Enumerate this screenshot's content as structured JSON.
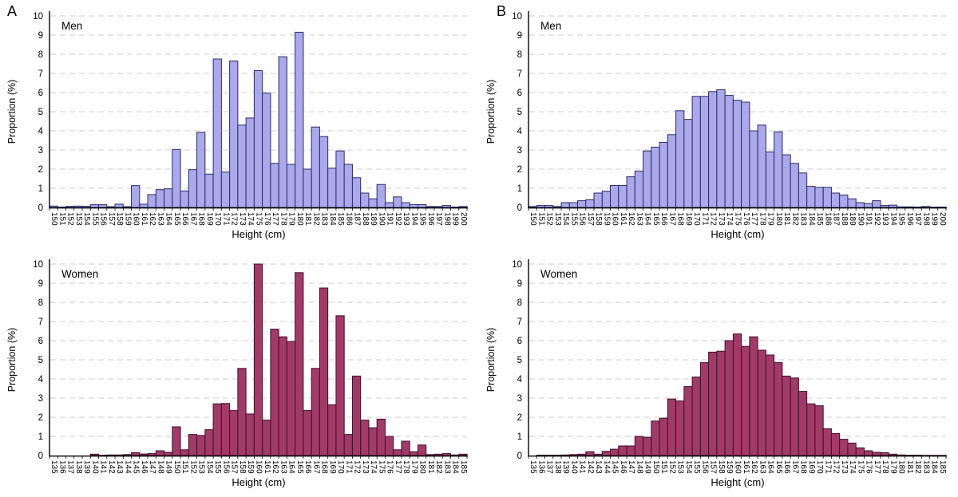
{
  "axes": {
    "ylabel": "Proportion (%)",
    "xlabel": "Height (cm)",
    "ylim": [
      0,
      10
    ],
    "yticks": [
      0,
      1,
      2,
      3,
      4,
      5,
      6,
      7,
      8,
      9,
      10
    ],
    "grid": "dashed horizontal"
  },
  "colors": {
    "men_fill": "#a9a9ec",
    "men_stroke": "#2b2b66",
    "women_fill": "#a23a68",
    "women_stroke": "#3c102e",
    "gridline": "#cccccc",
    "axis": "#000000",
    "background": "#ffffff"
  },
  "chart_data": [
    {
      "type": "bar",
      "panel": "A",
      "title": "Men",
      "xlabel": "Height (cm)",
      "ylabel": "Proportion (%)",
      "ylim": [
        0,
        10
      ],
      "legend": "none",
      "fill": "#a9a9ec",
      "stroke": "#2b2b66",
      "categories": [
        150,
        151,
        152,
        153,
        154,
        155,
        156,
        157,
        158,
        159,
        160,
        161,
        162,
        163,
        164,
        165,
        166,
        167,
        168,
        169,
        170,
        171,
        172,
        173,
        174,
        175,
        176,
        177,
        178,
        179,
        180,
        181,
        182,
        183,
        184,
        185,
        186,
        187,
        188,
        189,
        190,
        191,
        192,
        193,
        194,
        195,
        196,
        197,
        198,
        199,
        200
      ],
      "values": [
        0.07,
        0.02,
        0.06,
        0.07,
        0.06,
        0.14,
        0.14,
        0.04,
        0.17,
        0.04,
        1.14,
        0.17,
        0.67,
        0.93,
        0.97,
        3.03,
        0.86,
        1.97,
        3.92,
        1.74,
        7.75,
        1.85,
        7.65,
        4.3,
        4.67,
        7.15,
        5.97,
        2.3,
        7.87,
        2.25,
        9.15,
        2.0,
        4.2,
        3.7,
        2.05,
        2.95,
        2.25,
        1.55,
        0.75,
        0.45,
        1.2,
        0.25,
        0.55,
        0.25,
        0.15,
        0.15,
        0.05,
        0.05,
        0.1,
        0.02,
        0.05
      ]
    },
    {
      "type": "bar",
      "panel": "B",
      "title": "Men",
      "xlabel": "Height (cm)",
      "ylabel": "Proportion (%)",
      "ylim": [
        0,
        10
      ],
      "legend": "none",
      "fill": "#a9a9ec",
      "stroke": "#2b2b66",
      "categories": [
        150,
        151,
        152,
        153,
        154,
        155,
        156,
        157,
        158,
        159,
        160,
        161,
        162,
        163,
        164,
        165,
        166,
        167,
        168,
        169,
        170,
        171,
        172,
        173,
        174,
        175,
        176,
        177,
        178,
        179,
        180,
        181,
        182,
        183,
        184,
        185,
        186,
        187,
        188,
        189,
        190,
        191,
        192,
        193,
        194,
        195,
        196,
        197,
        198,
        199,
        200
      ],
      "values": [
        0.05,
        0.1,
        0.1,
        0.05,
        0.25,
        0.25,
        0.35,
        0.4,
        0.75,
        0.85,
        1.15,
        1.15,
        1.6,
        1.9,
        2.95,
        3.15,
        3.4,
        3.8,
        5.05,
        4.6,
        5.8,
        5.8,
        6.05,
        6.15,
        5.85,
        5.6,
        5.5,
        4.0,
        4.3,
        2.9,
        3.95,
        2.75,
        2.3,
        1.8,
        1.1,
        1.05,
        1.05,
        0.75,
        0.65,
        0.45,
        0.25,
        0.2,
        0.35,
        0.1,
        0.12,
        0.03,
        0.03,
        0.02,
        0.05,
        0.02,
        0.02
      ]
    },
    {
      "type": "bar",
      "panel": "A",
      "title": "Women",
      "xlabel": "Height (cm)",
      "ylabel": "Proportion (%)",
      "ylim": [
        0,
        10
      ],
      "legend": "none",
      "fill": "#a23a68",
      "stroke": "#3c102e",
      "categories": [
        135,
        136,
        137,
        138,
        139,
        140,
        141,
        142,
        143,
        144,
        145,
        146,
        147,
        148,
        149,
        150,
        151,
        152,
        153,
        154,
        155,
        156,
        157,
        158,
        159,
        160,
        161,
        162,
        163,
        164,
        165,
        166,
        167,
        168,
        169,
        170,
        171,
        172,
        173,
        174,
        175,
        176,
        177,
        178,
        179,
        180,
        181,
        182,
        183,
        184,
        185
      ],
      "values": [
        0,
        0,
        0,
        0,
        0,
        0.07,
        0.02,
        0.03,
        0.03,
        0.05,
        0.15,
        0.08,
        0.1,
        0.25,
        0.17,
        1.5,
        0.3,
        1.1,
        1.05,
        1.35,
        2.7,
        2.72,
        2.35,
        4.55,
        2.17,
        10.0,
        1.85,
        6.6,
        6.2,
        5.95,
        9.55,
        2.35,
        4.55,
        8.75,
        2.65,
        7.3,
        1.1,
        4.15,
        1.85,
        1.45,
        1.9,
        1.0,
        0.3,
        0.75,
        0.2,
        0.55,
        0.05,
        0.07,
        0.1,
        0.03,
        0.07
      ]
    },
    {
      "type": "bar",
      "panel": "B",
      "title": "Women",
      "xlabel": "Height (cm)",
      "ylabel": "Proportion (%)",
      "ylim": [
        0,
        10
      ],
      "legend": "none",
      "fill": "#a23a68",
      "stroke": "#3c102e",
      "categories": [
        135,
        136,
        137,
        138,
        139,
        140,
        141,
        142,
        143,
        144,
        145,
        146,
        147,
        148,
        149,
        150,
        151,
        152,
        153,
        154,
        155,
        156,
        157,
        158,
        159,
        160,
        161,
        162,
        163,
        164,
        165,
        166,
        167,
        168,
        169,
        170,
        171,
        172,
        173,
        174,
        175,
        176,
        177,
        178,
        179,
        180,
        181,
        182,
        183,
        184,
        185
      ],
      "values": [
        0,
        0.02,
        0.02,
        0.02,
        0.03,
        0.05,
        0.07,
        0.2,
        0.07,
        0.22,
        0.33,
        0.5,
        0.5,
        1.0,
        0.95,
        1.8,
        1.95,
        2.95,
        2.85,
        3.6,
        4.1,
        4.85,
        5.4,
        5.45,
        6.0,
        6.35,
        5.7,
        6.2,
        5.5,
        5.25,
        4.85,
        4.15,
        4.05,
        3.35,
        2.7,
        2.6,
        1.4,
        1.15,
        0.85,
        0.65,
        0.4,
        0.25,
        0.17,
        0.15,
        0.07,
        0.03,
        0.02,
        0.02,
        0.01,
        0.01,
        0.01
      ]
    }
  ]
}
